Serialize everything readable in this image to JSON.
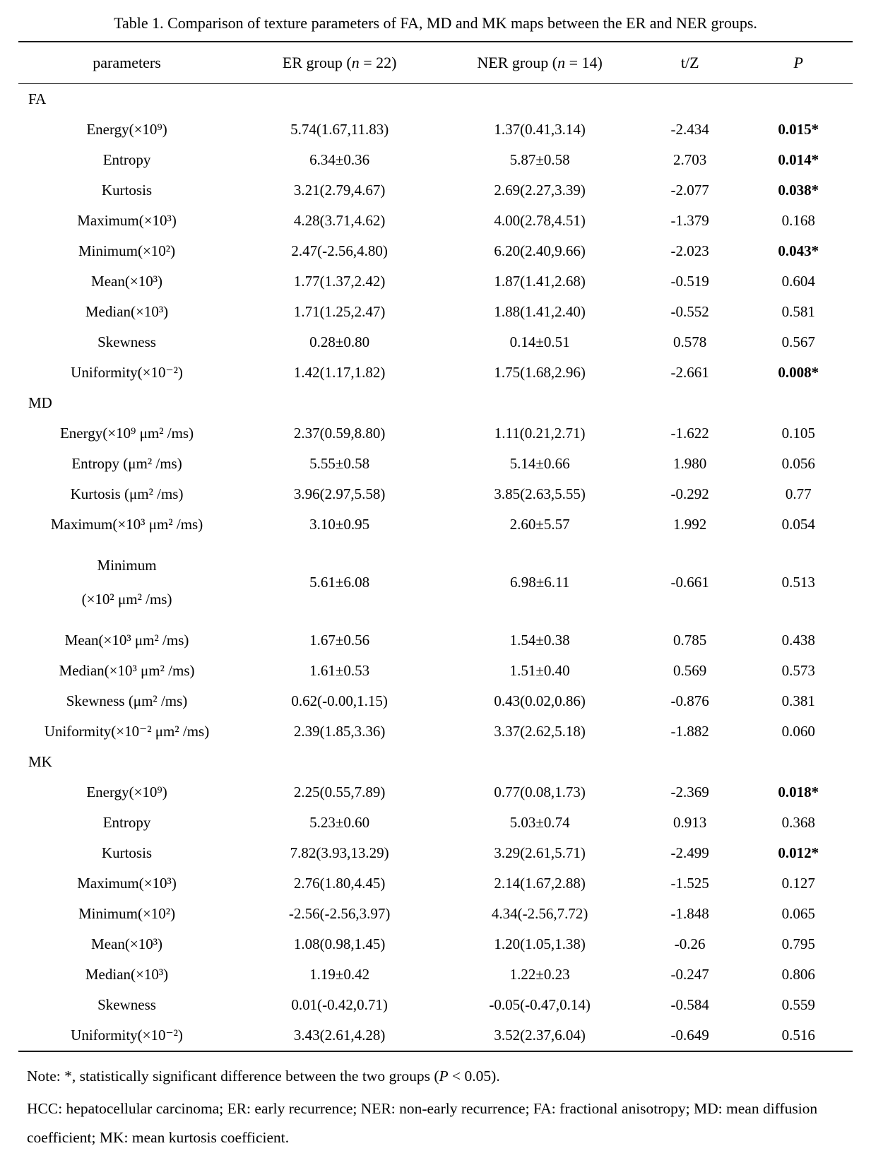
{
  "title": "Table 1. Comparison of texture parameters of FA, MD and MK maps between the ER and NER groups.",
  "header": {
    "parameters": "parameters",
    "er_group": {
      "pre": "ER group (",
      "it": "n",
      "post": " = 22)"
    },
    "ner_group": {
      "pre": "NER group (",
      "it": "n",
      "post": " = 14)"
    },
    "tz": "t/Z",
    "p": "P"
  },
  "sections": [
    {
      "name": "FA",
      "rows": [
        {
          "param": "Energy(×10⁹)",
          "er": "5.74(1.67,11.83)",
          "ner": "1.37(0.41,3.14)",
          "tz": "-2.434",
          "p": "0.015*",
          "sig": true
        },
        {
          "param": "Entropy",
          "er": "6.34±0.36",
          "ner": "5.87±0.58",
          "tz": "2.703",
          "p": "0.014*",
          "sig": true
        },
        {
          "param": "Kurtosis",
          "er": "3.21(2.79,4.67)",
          "ner": "2.69(2.27,3.39)",
          "tz": "-2.077",
          "p": "0.038*",
          "sig": true
        },
        {
          "param": "Maximum(×10³)",
          "er": "4.28(3.71,4.62)",
          "ner": "4.00(2.78,4.51)",
          "tz": "-1.379",
          "p": "0.168",
          "sig": false
        },
        {
          "param": "Minimum(×10²)",
          "er": "2.47(-2.56,4.80)",
          "ner": "6.20(2.40,9.66)",
          "tz": "-2.023",
          "p": "0.043*",
          "sig": true
        },
        {
          "param": "Mean(×10³)",
          "er": "1.77(1.37,2.42)",
          "ner": "1.87(1.41,2.68)",
          "tz": "-0.519",
          "p": "0.604",
          "sig": false
        },
        {
          "param": "Median(×10³)",
          "er": "1.71(1.25,2.47)",
          "ner": "1.88(1.41,2.40)",
          "tz": "-0.552",
          "p": "0.581",
          "sig": false
        },
        {
          "param": "Skewness",
          "er": "0.28±0.80",
          "ner": "0.14±0.51",
          "tz": "0.578",
          "p": "0.567",
          "sig": false
        },
        {
          "param": "Uniformity(×10⁻²)",
          "er": "1.42(1.17,1.82)",
          "ner": "1.75(1.68,2.96)",
          "tz": "-2.661",
          "p": "0.008*",
          "sig": true
        }
      ]
    },
    {
      "name": "MD",
      "rows": [
        {
          "param": "Energy(×10⁹ μm² /ms)",
          "er": "2.37(0.59,8.80)",
          "ner": "1.11(0.21,2.71)",
          "tz": "-1.622",
          "p": "0.105",
          "sig": false
        },
        {
          "param": "Entropy (μm² /ms)",
          "er": "5.55±0.58",
          "ner": "5.14±0.66",
          "tz": "1.980",
          "p": "0.056",
          "sig": false
        },
        {
          "param": "Kurtosis (μm² /ms)",
          "er": "3.96(2.97,5.58)",
          "ner": "3.85(2.63,5.55)",
          "tz": "-0.292",
          "p": "0.77",
          "sig": false
        },
        {
          "param": "Maximum(×10³ μm² /ms)",
          "er": "3.10±0.95",
          "ner": "2.60±5.57",
          "tz": "1.992",
          "p": "0.054",
          "sig": false
        },
        {
          "param": "Minimum\n(×10² μm² /ms)",
          "er": "5.61±6.08",
          "ner": "6.98±6.11",
          "tz": "-0.661",
          "p": "0.513",
          "sig": false
        },
        {
          "param": "Mean(×10³ μm² /ms)",
          "er": "1.67±0.56",
          "ner": "1.54±0.38",
          "tz": "0.785",
          "p": "0.438",
          "sig": false
        },
        {
          "param": "Median(×10³ μm² /ms)",
          "er": "1.61±0.53",
          "ner": "1.51±0.40",
          "tz": "0.569",
          "p": "0.573",
          "sig": false
        },
        {
          "param": "Skewness (μm² /ms)",
          "er": "0.62(-0.00,1.15)",
          "ner": "0.43(0.02,0.86)",
          "tz": "-0.876",
          "p": "0.381",
          "sig": false
        },
        {
          "param": "Uniformity(×10⁻² μm² /ms)",
          "er": "2.39(1.85,3.36)",
          "ner": "3.37(2.62,5.18)",
          "tz": "-1.882",
          "p": "0.060",
          "sig": false
        }
      ]
    },
    {
      "name": "MK",
      "rows": [
        {
          "param": "Energy(×10⁹)",
          "er": "2.25(0.55,7.89)",
          "ner": "0.77(0.08,1.73)",
          "tz": "-2.369",
          "p": "0.018*",
          "sig": true
        },
        {
          "param": "Entropy",
          "er": "5.23±0.60",
          "ner": "5.03±0.74",
          "tz": "0.913",
          "p": "0.368",
          "sig": false
        },
        {
          "param": "Kurtosis",
          "er": "7.82(3.93,13.29)",
          "ner": "3.29(2.61,5.71)",
          "tz": "-2.499",
          "p": "0.012*",
          "sig": true
        },
        {
          "param": "Maximum(×10³)",
          "er": "2.76(1.80,4.45)",
          "ner": "2.14(1.67,2.88)",
          "tz": "-1.525",
          "p": "0.127",
          "sig": false
        },
        {
          "param": "Minimum(×10²)",
          "er": "-2.56(-2.56,3.97)",
          "ner": "4.34(-2.56,7.72)",
          "tz": "-1.848",
          "p": "0.065",
          "sig": false
        },
        {
          "param": "Mean(×10³)",
          "er": "1.08(0.98,1.45)",
          "ner": "1.20(1.05,1.38)",
          "tz": "-0.26",
          "p": "0.795",
          "sig": false
        },
        {
          "param": "Median(×10³)",
          "er": "1.19±0.42",
          "ner": "1.22±0.23",
          "tz": "-0.247",
          "p": "0.806",
          "sig": false
        },
        {
          "param": "Skewness",
          "er": "0.01(-0.42,0.71)",
          "ner": "-0.05(-0.47,0.14)",
          "tz": "-0.584",
          "p": "0.559",
          "sig": false
        },
        {
          "param": "Uniformity(×10⁻²)",
          "er": "3.43(2.61,4.28)",
          "ner": "3.52(2.37,6.04)",
          "tz": "-0.649",
          "p": "0.516",
          "sig": false
        }
      ]
    }
  ],
  "notes": {
    "significance": {
      "pre": "Note: *, statistically significant difference between the two groups (",
      "it": "P",
      "post": " < 0.05)."
    },
    "abbreviations": "HCC: hepatocellular carcinoma; ER: early recurrence; NER: non-early recurrence; FA: fractional anisotropy; MD: mean diffusion coefficient; MK: mean kurtosis coefficient."
  }
}
